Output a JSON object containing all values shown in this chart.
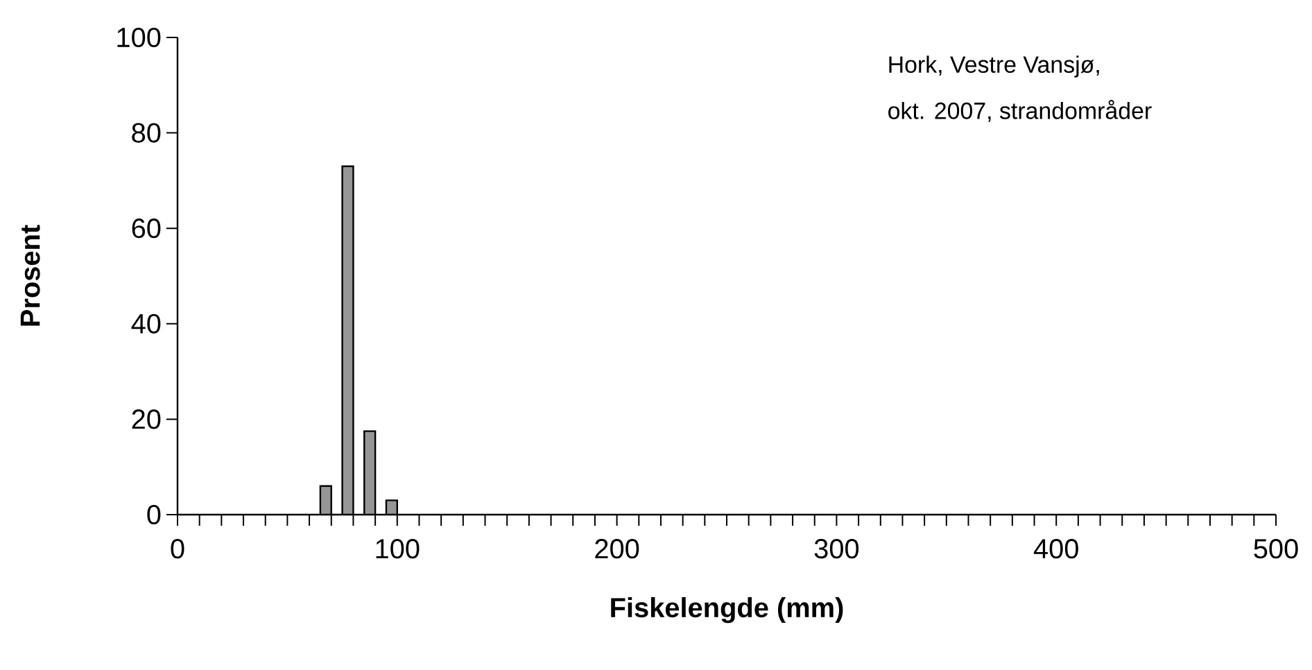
{
  "chart_data": {
    "type": "bar",
    "xlabel": "Fiskelengde (mm)",
    "ylabel": "Prosent",
    "annotations": [
      "Hork, Vestre Vansjø,",
      "okt. 2007, strandområder"
    ],
    "x": [
      67.5,
      77.5,
      87.5,
      97.5
    ],
    "values": [
      6,
      73,
      17.5,
      3
    ],
    "color": "#969696",
    "xlim": [
      0,
      500
    ],
    "ylim": [
      0,
      100
    ],
    "xticks": [
      0,
      {
        "value": 10,
        "label": null
      },
      {
        "value": 20,
        "label": null
      },
      {
        "value": 30,
        "label": null
      },
      {
        "value": 40,
        "label": null
      },
      {
        "value": 50,
        "label": null
      },
      {
        "value": 60,
        "label": null
      },
      {
        "value": 70,
        "label": null
      },
      {
        "value": 80,
        "label": null
      },
      {
        "value": 90,
        "label": null
      },
      100,
      {
        "value": 110,
        "label": null
      },
      {
        "value": 120,
        "label": null
      },
      {
        "value": 130,
        "label": null
      },
      {
        "value": 140,
        "label": null
      },
      {
        "value": 150,
        "label": null
      },
      {
        "value": 160,
        "label": null
      },
      {
        "value": 170,
        "label": null
      },
      {
        "value": 180,
        "label": null
      },
      {
        "value": 190,
        "label": null
      },
      200,
      {
        "value": 210,
        "label": null
      },
      {
        "value": 220,
        "label": null
      },
      {
        "value": 230,
        "label": null
      },
      {
        "value": 240,
        "label": null
      },
      {
        "value": 250,
        "label": null
      },
      {
        "value": 260,
        "label": null
      },
      {
        "value": 270,
        "label": null
      },
      {
        "value": 280,
        "label": null
      },
      {
        "value": 290,
        "label": null
      },
      300,
      {
        "value": 310,
        "label": null
      },
      {
        "value": 320,
        "label": null
      },
      {
        "value": 330,
        "label": null
      },
      {
        "value": 340,
        "label": null
      },
      {
        "value": 350,
        "label": null
      },
      {
        "value": 360,
        "label": null
      },
      {
        "value": 370,
        "label": null
      },
      {
        "value": 380,
        "label": null
      },
      {
        "value": 390,
        "label": null
      },
      400,
      {
        "value": 410,
        "label": null
      },
      {
        "value": 420,
        "label": null
      },
      {
        "value": 430,
        "label": null
      },
      {
        "value": 440,
        "label": null
      },
      {
        "value": 450,
        "label": null
      },
      {
        "value": 460,
        "label": null
      },
      {
        "value": 470,
        "label": null
      },
      {
        "value": 480,
        "label": null
      },
      {
        "value": 490,
        "label": null
      },
      500
    ],
    "yticks": [
      0,
      20,
      40,
      60,
      80,
      100
    ],
    "grid": false
  }
}
